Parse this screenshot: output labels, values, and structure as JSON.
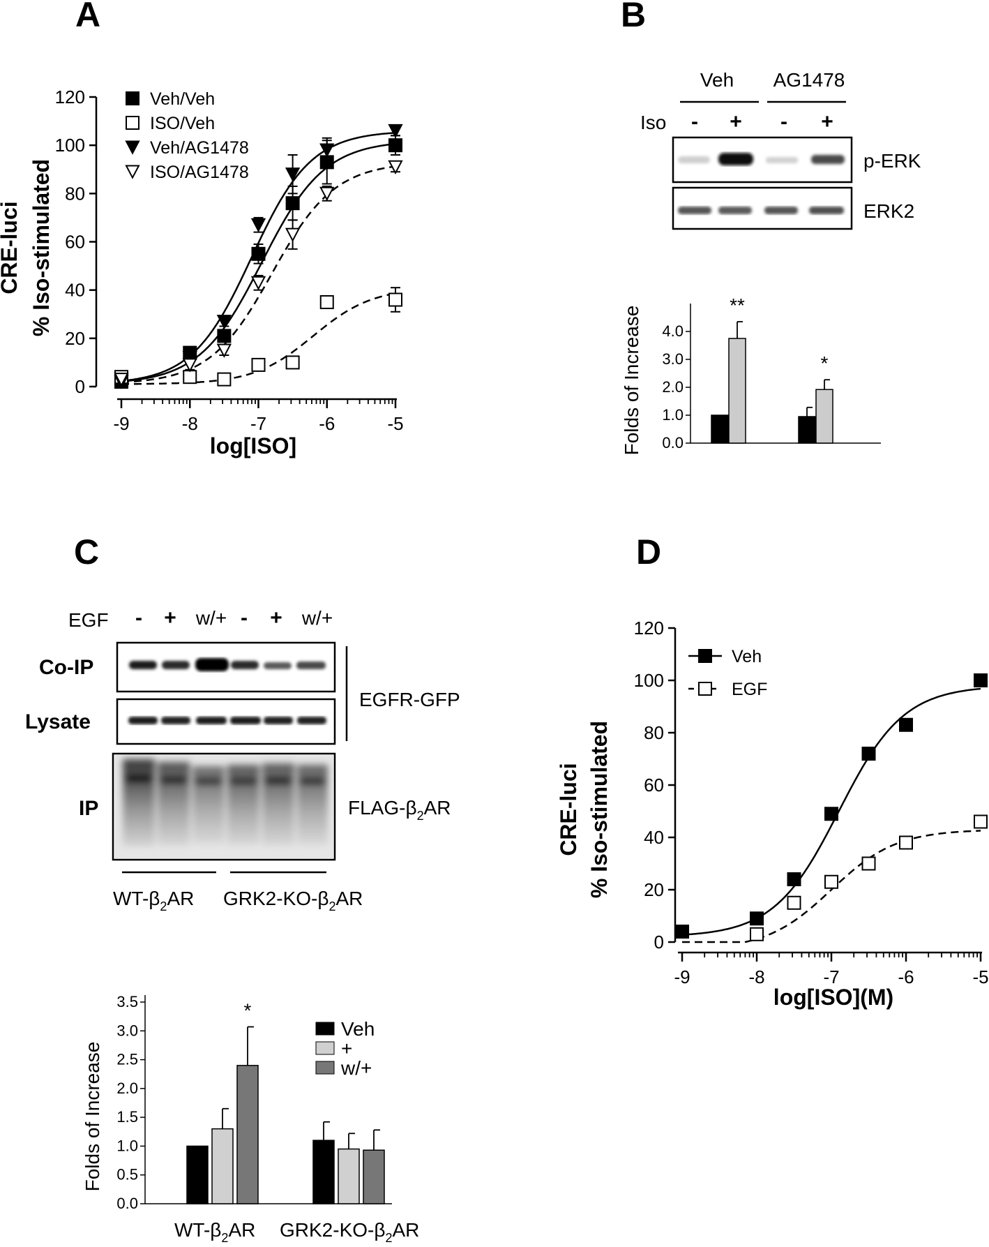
{
  "panels": {
    "A": "A",
    "B": "B",
    "C": "C",
    "D": "D"
  },
  "chart_data": [
    {
      "id": "A",
      "type": "scatter",
      "ylabel": [
        "CRE-luci",
        "% Iso-stimulated"
      ],
      "xlabel": "log[ISO]",
      "xlim": [
        -9,
        -5
      ],
      "ylim": [
        0,
        120
      ],
      "x_ticks": [
        -9,
        -8,
        -7,
        -6,
        -5
      ],
      "y_ticks": [
        0,
        20,
        40,
        60,
        80,
        100,
        120
      ],
      "legend_position": "top-left",
      "series": [
        {
          "name": "Veh/Veh",
          "marker": "filled-square",
          "line": "solid",
          "x": [
            -9,
            -8,
            -7.5,
            -7,
            -6.5,
            -6,
            -5
          ],
          "y": [
            2,
            14,
            21,
            55,
            76,
            93,
            100
          ],
          "err": [
            1,
            2,
            2,
            4,
            7,
            9,
            4
          ],
          "fit": {
            "bottom": 1,
            "top": 102,
            "logec50": -6.95,
            "hill": 0.95
          }
        },
        {
          "name": "ISO/Veh",
          "marker": "open-square",
          "line": "dashed",
          "x": [
            -9,
            -8,
            -7.5,
            -7,
            -6.5,
            -6,
            -5
          ],
          "y": [
            4,
            4,
            3,
            9,
            10,
            35,
            36
          ],
          "err": [
            1,
            1,
            1,
            1,
            1,
            2,
            5
          ],
          "fit": {
            "bottom": 1,
            "top": 41,
            "logec50": -6.2,
            "hill": 1.0
          }
        },
        {
          "name": "Veh/AG1478",
          "marker": "filled-triangle-down",
          "line": "solid",
          "x": [
            -9,
            -8,
            -7.5,
            -7,
            -6.5,
            -6,
            -5
          ],
          "y": [
            2,
            12,
            27,
            67,
            88,
            98,
            106
          ],
          "err": [
            1,
            2,
            2,
            3,
            8,
            5,
            2
          ],
          "fit": {
            "bottom": 1,
            "top": 106,
            "logec50": -7.1,
            "hill": 1.0
          }
        },
        {
          "name": "ISO/AG1478",
          "marker": "open-triangle-down",
          "line": "dashed",
          "x": [
            -9,
            -8,
            -7.5,
            -7,
            -6.5,
            -6,
            -5
          ],
          "y": [
            3,
            9,
            15,
            43,
            63,
            80,
            91
          ],
          "err": [
            1,
            2,
            2,
            3,
            6,
            3,
            2
          ],
          "fit": {
            "bottom": 1,
            "top": 93,
            "logec50": -6.8,
            "hill": 0.95
          }
        }
      ]
    },
    {
      "id": "B",
      "type": "bar",
      "ylabel": "Folds of Increase",
      "ylim": [
        0,
        4.5
      ],
      "y_ticks": [
        "0.0",
        "1.0",
        "2.0",
        "3.0",
        "4.0"
      ],
      "groups": [
        "Veh",
        "AG1478"
      ],
      "series": [
        {
          "color": "#000000",
          "values": [
            1.0,
            0.95
          ],
          "err": [
            0,
            0.33
          ]
        },
        {
          "color": "#cccccc",
          "values": [
            3.75,
            1.92
          ],
          "err": [
            0.6,
            0.35
          ]
        }
      ],
      "annotations": [
        "**",
        "*"
      ]
    },
    {
      "id": "C",
      "type": "bar",
      "ylabel": "Folds of Increase",
      "ylim": [
        0,
        3.5
      ],
      "y_ticks": [
        "0.0",
        "0.5",
        "1.0",
        "1.5",
        "2.0",
        "2.5",
        "3.0",
        "3.5"
      ],
      "categories": [
        "WT-β2AR",
        "GRK2-KO-β2AR"
      ],
      "legend_position": "top-right",
      "series": [
        {
          "name": "Veh",
          "color": "#000000",
          "values": [
            1.0,
            1.1
          ],
          "err": [
            0,
            0.32
          ]
        },
        {
          "name": "+",
          "color": "#d0d0d0",
          "values": [
            1.3,
            0.95
          ],
          "err": [
            0.35,
            0.27
          ]
        },
        {
          "name": "w/+",
          "color": "#777777",
          "values": [
            2.4,
            0.93
          ],
          "err": [
            0.67,
            0.35
          ]
        }
      ],
      "annotations": [
        "*"
      ]
    },
    {
      "id": "D",
      "type": "scatter",
      "ylabel": [
        "CRE-luci",
        "% Iso-stimulated"
      ],
      "xlabel": "log[ISO](M)",
      "xlim": [
        -9,
        -5
      ],
      "ylim": [
        0,
        120
      ],
      "x_ticks": [
        -9,
        -8,
        -7,
        -6,
        -5
      ],
      "y_ticks": [
        0,
        20,
        40,
        60,
        80,
        100,
        120
      ],
      "legend_position": "top-left",
      "series": [
        {
          "name": "Veh",
          "marker": "filled-square",
          "line": "solid",
          "x": [
            -9,
            -8,
            -7.5,
            -7,
            -6.5,
            -6,
            -5
          ],
          "y": [
            4,
            9,
            24,
            49,
            72,
            83,
            100
          ],
          "fit": {
            "bottom": 2,
            "top": 98,
            "logec50": -6.9,
            "hill": 1.0
          }
        },
        {
          "name": "EGF",
          "marker": "open-square",
          "line": "dashed",
          "x": [
            -8,
            -7.5,
            -7,
            -6.5,
            -6,
            -5
          ],
          "y": [
            3,
            15,
            23,
            30,
            38,
            46
          ],
          "fit": {
            "bottom": -3,
            "top": 43,
            "logec50": -7.0,
            "hill": 1.0
          }
        }
      ]
    }
  ],
  "blot_B": {
    "group_labels": [
      "Veh",
      "AG1478"
    ],
    "iso_label": "Iso",
    "iso_signs": [
      "-",
      "+",
      "-",
      "+"
    ],
    "row_labels": [
      "p-ERK",
      "ERK2"
    ]
  },
  "blot_C": {
    "treatment_label": "EGF",
    "lanes": [
      "-",
      "+",
      "w/+",
      "-",
      "+",
      "w/+"
    ],
    "row_labels": [
      "Co-IP",
      "Lysate",
      "IP"
    ],
    "egfr_label": "EGFR-GFP",
    "flag_label": "FLAG-β",
    "flag_sub": "2",
    "flag_suffix": "AR",
    "group_labels": [
      {
        "pre": "WT-β",
        "sub": "2",
        "post": "AR"
      },
      {
        "pre": "GRK2-KO-β",
        "sub": "2",
        "post": "AR"
      }
    ]
  }
}
